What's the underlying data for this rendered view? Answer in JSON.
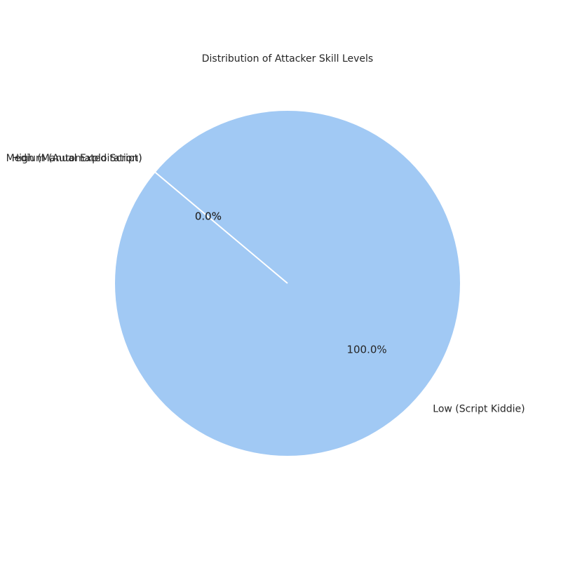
{
  "chart_data": {
    "type": "pie",
    "title": "Distribution of Attacker Skill Levels",
    "start_angle_deg": 140,
    "counterclockwise": true,
    "slices": [
      {
        "label": "Low (Script Kiddie)",
        "value": 100.0,
        "pct_label": "100.0%",
        "color": "#a1c9f4"
      },
      {
        "label": "Medium (Automated Script)",
        "value": 0.0,
        "pct_label": "0.0%",
        "color": "#ffb482"
      },
      {
        "label": "High (Manual Exploitation)",
        "value": 0.0,
        "pct_label": "0.0%",
        "color": "#8de5a1"
      }
    ],
    "wedge_edge_color": "#ffffff",
    "legend": "none"
  }
}
